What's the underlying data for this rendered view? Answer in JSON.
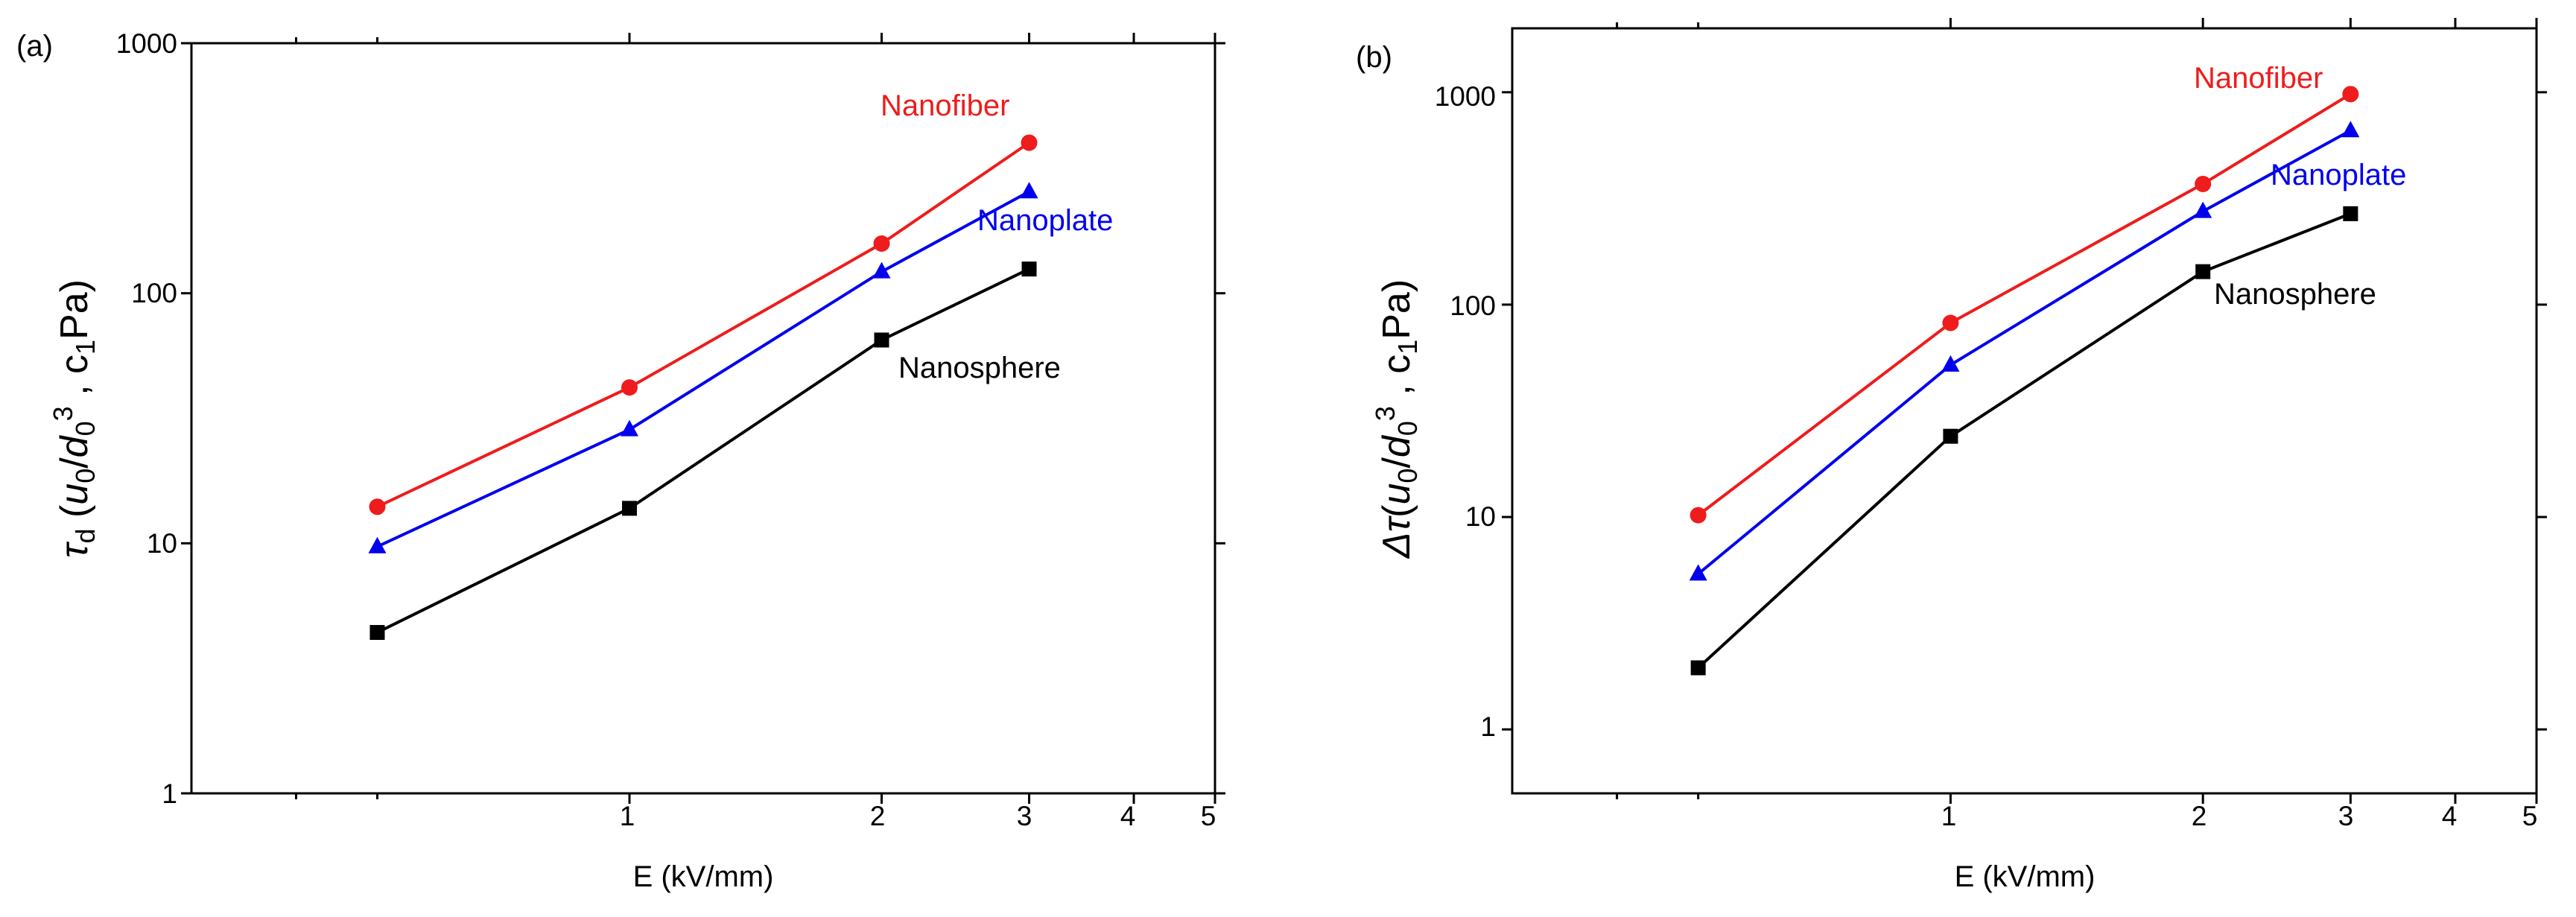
{
  "chart_data": [
    {
      "type": "line",
      "panel_label": "(a)",
      "xlabel": "E (kV/mm)",
      "ylabel": {
        "symbol": "τ",
        "subscript": "d",
        "open": " (",
        "u": "u",
        "u_sub": "0",
        "slash": "/",
        "d": "d",
        "d_sub": "0",
        "d_sup": "3",
        "comma": " , c",
        "c_sub": "1",
        "unit": "Pa)"
      },
      "x_scale": "log",
      "y_scale": "log",
      "xlim": [
        0.3,
        5
      ],
      "ylim": [
        1,
        1000
      ],
      "x_ticks": [
        1,
        2,
        3,
        4,
        5
      ],
      "x_tick_labels": [
        "1",
        "2",
        "3",
        "4",
        "5"
      ],
      "y_ticks": [
        1,
        10,
        100,
        1000
      ],
      "y_tick_labels": [
        "1",
        "10",
        "100",
        "1000"
      ],
      "series": [
        {
          "name": "Nanofiber",
          "color": "#ee1c1c",
          "marker": "circle",
          "x": [
            0.5,
            1,
            2,
            3
          ],
          "y": [
            14,
            42,
            158,
            400
          ]
        },
        {
          "name": "Nanoplate",
          "color": "#0000ee",
          "marker": "triangle",
          "x": [
            0.5,
            1,
            2,
            3
          ],
          "y": [
            9.7,
            28.5,
            122,
            255
          ]
        },
        {
          "name": "Nanosphere",
          "color": "#000000",
          "marker": "square",
          "x": [
            0.5,
            1,
            2,
            3
          ],
          "y": [
            4.4,
            13.8,
            65,
            125
          ]
        }
      ]
    },
    {
      "type": "line",
      "panel_label": "(b)",
      "xlabel": "E (kV/mm)",
      "ylabel": {
        "delta": "Δτ",
        "open": "(",
        "u": "u",
        "u_sub": "0",
        "slash": "/",
        "d": "d",
        "d_sub": "0",
        "d_sup": "3",
        "comma": " , c",
        "c_sub": "1",
        "unit": "Pa)"
      },
      "x_scale": "log",
      "y_scale": "log",
      "xlim": [
        0.3,
        5
      ],
      "ylim": [
        0.5,
        2000
      ],
      "x_ticks": [
        1,
        2,
        3,
        4,
        5
      ],
      "x_tick_labels": [
        "1",
        "2",
        "3",
        "4",
        "5"
      ],
      "y_ticks": [
        1,
        10,
        100,
        1000
      ],
      "y_tick_labels": [
        "1",
        "10",
        "100",
        "1000"
      ],
      "series": [
        {
          "name": "Nanofiber",
          "color": "#ee1c1c",
          "marker": "circle",
          "x": [
            0.5,
            1,
            2,
            3
          ],
          "y": [
            10.2,
            82,
            370,
            980
          ]
        },
        {
          "name": "Nanoplate",
          "color": "#0000ee",
          "marker": "triangle",
          "x": [
            0.5,
            1,
            2,
            3
          ],
          "y": [
            5.4,
            52,
            275,
            660
          ]
        },
        {
          "name": "Nanosphere",
          "color": "#000000",
          "marker": "square",
          "x": [
            0.5,
            1,
            2,
            3
          ],
          "y": [
            1.95,
            24,
            143,
            268
          ]
        }
      ]
    }
  ]
}
